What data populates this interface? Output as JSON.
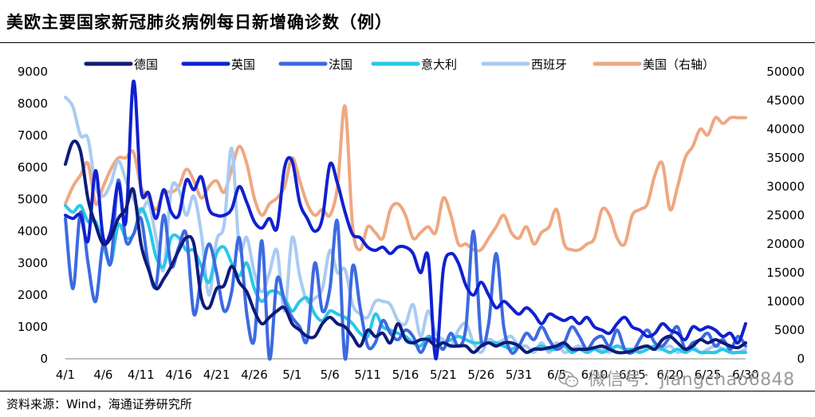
{
  "title": "美欧主要国家新冠肺炎病例每日新增确诊数（例）",
  "source": "资料来源：Wind，海通证券研究所",
  "watermark": "微信号：jiangchao6848",
  "colors": {
    "germany": "#0d1b7a",
    "uk": "#1020d0",
    "france": "#3c6ae0",
    "italy": "#28c8e8",
    "spain": "#a9cbf2",
    "us": "#eea882"
  },
  "chart_data": {
    "type": "line",
    "x": [
      "4/1",
      "4/2",
      "4/3",
      "4/4",
      "4/5",
      "4/6",
      "4/7",
      "4/8",
      "4/9",
      "4/10",
      "4/11",
      "4/12",
      "4/13",
      "4/14",
      "4/15",
      "4/16",
      "4/17",
      "4/18",
      "4/19",
      "4/20",
      "4/21",
      "4/22",
      "4/23",
      "4/24",
      "4/25",
      "4/26",
      "4/27",
      "4/28",
      "4/29",
      "4/30",
      "5/1",
      "5/2",
      "5/3",
      "5/4",
      "5/5",
      "5/6",
      "5/7",
      "5/8",
      "5/9",
      "5/10",
      "5/11",
      "5/12",
      "5/13",
      "5/14",
      "5/15",
      "5/16",
      "5/17",
      "5/18",
      "5/19",
      "5/20",
      "5/21",
      "5/22",
      "5/23",
      "5/24",
      "5/25",
      "5/26",
      "5/27",
      "5/28",
      "5/29",
      "5/30",
      "5/31",
      "6/1",
      "6/2",
      "6/3",
      "6/4",
      "6/5",
      "6/6",
      "6/7",
      "6/8",
      "6/9",
      "6/10",
      "6/11",
      "6/12",
      "6/13",
      "6/14",
      "6/15",
      "6/16",
      "6/17",
      "6/18",
      "6/19",
      "6/20",
      "6/21",
      "6/22",
      "6/23",
      "6/24",
      "6/25",
      "6/26",
      "6/27",
      "6/28",
      "6/29",
      "6/30"
    ],
    "xticks": [
      "4/1",
      "4/6",
      "4/11",
      "4/16",
      "4/21",
      "4/26",
      "5/1",
      "5/6",
      "5/11",
      "5/16",
      "5/21",
      "5/26",
      "5/31",
      "6/5",
      "6/10",
      "6/15",
      "6/20",
      "6/25",
      "6/30"
    ],
    "y_left": {
      "min": 0,
      "max": 9000,
      "ticks": [
        0,
        1000,
        2000,
        3000,
        4000,
        5000,
        6000,
        7000,
        8000,
        9000
      ]
    },
    "y_right": {
      "min": 0,
      "max": 50000,
      "ticks": [
        0,
        5000,
        10000,
        15000,
        20000,
        25000,
        30000,
        35000,
        40000,
        45000,
        50000
      ]
    },
    "legend_position": "top",
    "series": [
      {
        "name": "德国",
        "color_key": "germany",
        "axis": "left",
        "values": [
          6100,
          6800,
          6500,
          5000,
          4200,
          3600,
          3800,
          4400,
          4700,
          5300,
          3600,
          2800,
          2200,
          2500,
          2900,
          3400,
          3800,
          3600,
          1900,
          1600,
          2200,
          2300,
          2900,
          2400,
          2100,
          1500,
          1100,
          1300,
          1500,
          1600,
          1100,
          900,
          700,
          700,
          1100,
          1300,
          1100,
          1000,
          700,
          400,
          900,
          700,
          800,
          500,
          1100,
          600,
          500,
          600,
          600,
          400,
          500,
          400,
          400,
          400,
          200,
          400,
          500,
          400,
          500,
          500,
          400,
          200,
          300,
          300,
          350,
          400,
          500,
          300,
          300,
          300,
          350,
          400,
          300,
          200,
          200,
          250,
          350,
          400,
          300,
          600,
          700,
          500,
          300,
          400,
          600,
          500,
          600,
          500,
          400,
          350,
          500
        ]
      },
      {
        "name": "英国",
        "color_key": "uk",
        "axis": "left",
        "values": [
          4500,
          4400,
          4500,
          3700,
          5900,
          3800,
          4000,
          5500,
          4300,
          8700,
          5300,
          5200,
          4400,
          5300,
          4600,
          4500,
          5600,
          5300,
          5700,
          4700,
          4500,
          4500,
          4700,
          5400,
          4900,
          4300,
          4100,
          4400,
          4100,
          6000,
          6200,
          4900,
          4400,
          4000,
          4400,
          6100,
          5500,
          4600,
          3900,
          3800,
          3500,
          3400,
          3500,
          3300,
          3500,
          3500,
          3300,
          2700,
          3200,
          0,
          2800,
          3300,
          3000,
          2300,
          2000,
          2400,
          2000,
          1600,
          1800,
          1600,
          1400,
          1600,
          1400,
          1100,
          1400,
          1300,
          1200,
          1300,
          1100,
          1300,
          1000,
          900,
          800,
          1100,
          1300,
          1000,
          900,
          700,
          800,
          1100,
          900,
          800,
          600,
          1000,
          900,
          1000,
          900,
          700,
          800,
          500,
          1100
        ]
      },
      {
        "name": "法国",
        "color_key": "france",
        "axis": "left",
        "values": [
          4400,
          2200,
          4600,
          3000,
          1800,
          3600,
          3000,
          5600,
          3700,
          3900,
          4400,
          2900,
          2300,
          4500,
          2900,
          3500,
          3900,
          1400,
          2600,
          3600,
          2700,
          1500,
          2100,
          3800,
          1400,
          600,
          3700,
          0,
          2500,
          1800,
          1300,
          1000,
          600,
          3000,
          1500,
          2200,
          4300,
          0,
          2900,
          1600,
          400,
          500,
          1200,
          800,
          600,
          900,
          700,
          200,
          600,
          600,
          300,
          800,
          400,
          1000,
          4000,
          600,
          1100,
          3300,
          1000,
          200,
          400,
          800,
          600,
          1000,
          600,
          300,
          500,
          1000,
          700,
          300,
          600,
          700,
          400,
          900,
          300,
          200,
          600,
          900,
          500,
          400,
          700,
          1000,
          300,
          500,
          600,
          800,
          400,
          600,
          300,
          700,
          400
        ]
      },
      {
        "name": "意大利",
        "color_key": "italy",
        "axis": "left",
        "values": [
          4800,
          4600,
          4800,
          4300,
          4300,
          3600,
          3000,
          4200,
          3800,
          3900,
          4700,
          4200,
          3200,
          2900,
          3800,
          3800,
          3400,
          3400,
          2900,
          2400,
          3300,
          3500,
          3000,
          2600,
          3000,
          2200,
          1800,
          2100,
          2100,
          1900,
          1500,
          1800,
          1900,
          1400,
          1200,
          1500,
          1400,
          1300,
          1100,
          800,
          700,
          1400,
          1000,
          900,
          800,
          700,
          500,
          400,
          700,
          600,
          500,
          600,
          700,
          600,
          500,
          500,
          500,
          500,
          400,
          300,
          400,
          200,
          300,
          400,
          300,
          300,
          400,
          200,
          300,
          200,
          300,
          200,
          300,
          400,
          300,
          300,
          200,
          300,
          400,
          300,
          200,
          300,
          200,
          300,
          200,
          200,
          200,
          300,
          200,
          200,
          200
        ]
      },
      {
        "name": "西班牙",
        "color_key": "spain",
        "axis": "left",
        "values": [
          8200,
          7900,
          7000,
          6900,
          5400,
          5100,
          5500,
          6200,
          5600,
          5000,
          4600,
          4900,
          3800,
          2800,
          5300,
          5300,
          4500,
          5100,
          3900,
          2000,
          3700,
          4200,
          6600,
          3500,
          3800,
          2700,
          2100,
          2700,
          3400,
          1500,
          3800,
          2600,
          1800,
          1900,
          2200,
          3400,
          2700,
          2800,
          1700,
          1400,
          1300,
          1800,
          1800,
          1700,
          1200,
          1100,
          1700,
          700,
          1500,
          800,
          600,
          400,
          900,
          1100,
          500,
          200,
          600,
          500,
          600,
          700,
          400,
          400,
          200,
          500,
          200,
          500,
          200,
          300,
          400,
          200,
          300,
          300,
          200,
          400,
          300,
          200,
          300,
          400,
          300,
          300,
          400,
          200,
          300,
          400,
          200,
          300,
          400,
          300,
          200,
          200,
          300
        ]
      },
      {
        "name": "美国（右轴）",
        "color_key": "us",
        "axis": "right",
        "values": [
          27000,
          30000,
          32000,
          34000,
          27000,
          30000,
          33000,
          35000,
          35000,
          36000,
          30000,
          28000,
          26000,
          29000,
          29000,
          30000,
          33000,
          31000,
          28000,
          30000,
          31000,
          29000,
          33000,
          37000,
          34000,
          28000,
          25000,
          27000,
          28000,
          30000,
          35000,
          31000,
          27000,
          25000,
          26000,
          25000,
          30000,
          44000,
          23000,
          19000,
          23000,
          22000,
          21000,
          26000,
          27000,
          25000,
          21000,
          22000,
          23000,
          22000,
          28000,
          25000,
          20000,
          20000,
          19000,
          19000,
          21000,
          23000,
          25000,
          22000,
          21000,
          23000,
          20000,
          22000,
          23000,
          26000,
          20000,
          19000,
          19000,
          20000,
          21000,
          26000,
          25000,
          21000,
          20000,
          25000,
          26000,
          27000,
          32000,
          34000,
          26000,
          30000,
          35000,
          37000,
          40000,
          39000,
          42000,
          41000,
          42000,
          42000,
          42000
        ]
      }
    ]
  }
}
